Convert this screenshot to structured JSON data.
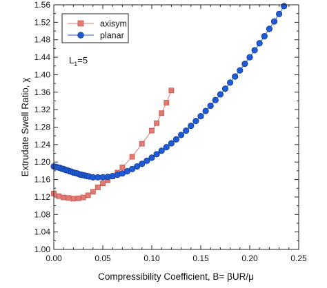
{
  "chart_data": {
    "type": "line",
    "xlabel": "Compressibility Coefficient, B= βUR/μ",
    "ylabel": "Extrudate Swell Ratio, χ",
    "xlim": [
      0,
      0.25
    ],
    "ylim": [
      1.0,
      1.56
    ],
    "x_ticks": [
      "0.00",
      "0.05",
      "0.10",
      "0.15",
      "0.20",
      "0.25"
    ],
    "y_ticks": [
      "1.00",
      "1.04",
      "1.08",
      "1.12",
      "1.16",
      "1.20",
      "1.24",
      "1.28",
      "1.32",
      "1.36",
      "1.40",
      "1.44",
      "1.48",
      "1.52",
      "1.56"
    ],
    "grid": false,
    "legend_position": "top-left",
    "annotation": {
      "main": "L",
      "sub": "1",
      "suffix": "=5"
    },
    "series": [
      {
        "name": "axisym",
        "marker": "square",
        "color": "#e07b72",
        "x": [
          0.0,
          0.005,
          0.01,
          0.015,
          0.02,
          0.025,
          0.03,
          0.035,
          0.04,
          0.045,
          0.05,
          0.055,
          0.06,
          0.065,
          0.07,
          0.08,
          0.09,
          0.1,
          0.105,
          0.11,
          0.115,
          0.12
        ],
        "y": [
          1.128,
          1.122,
          1.119,
          1.118,
          1.116,
          1.117,
          1.119,
          1.124,
          1.132,
          1.142,
          1.151,
          1.158,
          1.167,
          1.176,
          1.188,
          1.212,
          1.242,
          1.272,
          1.289,
          1.312,
          1.336,
          1.364
        ]
      },
      {
        "name": "planar",
        "marker": "circle",
        "color": "#1f5bd6",
        "x": [
          0.0,
          0.002,
          0.004,
          0.006,
          0.008,
          0.01,
          0.012,
          0.014,
          0.016,
          0.018,
          0.02,
          0.022,
          0.024,
          0.026,
          0.028,
          0.03,
          0.032,
          0.034,
          0.036,
          0.04,
          0.045,
          0.05,
          0.055,
          0.06,
          0.065,
          0.07,
          0.075,
          0.08,
          0.085,
          0.09,
          0.095,
          0.1,
          0.105,
          0.11,
          0.115,
          0.12,
          0.125,
          0.13,
          0.135,
          0.14,
          0.145,
          0.15,
          0.155,
          0.16,
          0.165,
          0.17,
          0.175,
          0.18,
          0.185,
          0.19,
          0.195,
          0.2,
          0.205,
          0.21,
          0.215,
          0.22,
          0.225,
          0.23,
          0.235
        ],
        "y": [
          1.19,
          1.189,
          1.188,
          1.187,
          1.185,
          1.184,
          1.182,
          1.181,
          1.179,
          1.178,
          1.176,
          1.175,
          1.174,
          1.172,
          1.171,
          1.17,
          1.169,
          1.168,
          1.167,
          1.165,
          1.165,
          1.165,
          1.166,
          1.168,
          1.171,
          1.174,
          1.179,
          1.184,
          1.19,
          1.196,
          1.203,
          1.21,
          1.218,
          1.226,
          1.234,
          1.243,
          1.252,
          1.262,
          1.272,
          1.283,
          1.294,
          1.305,
          1.317,
          1.329,
          1.342,
          1.355,
          1.368,
          1.382,
          1.396,
          1.41,
          1.425,
          1.44,
          1.456,
          1.472,
          1.488,
          1.505,
          1.522,
          1.539,
          1.557
        ]
      }
    ]
  }
}
